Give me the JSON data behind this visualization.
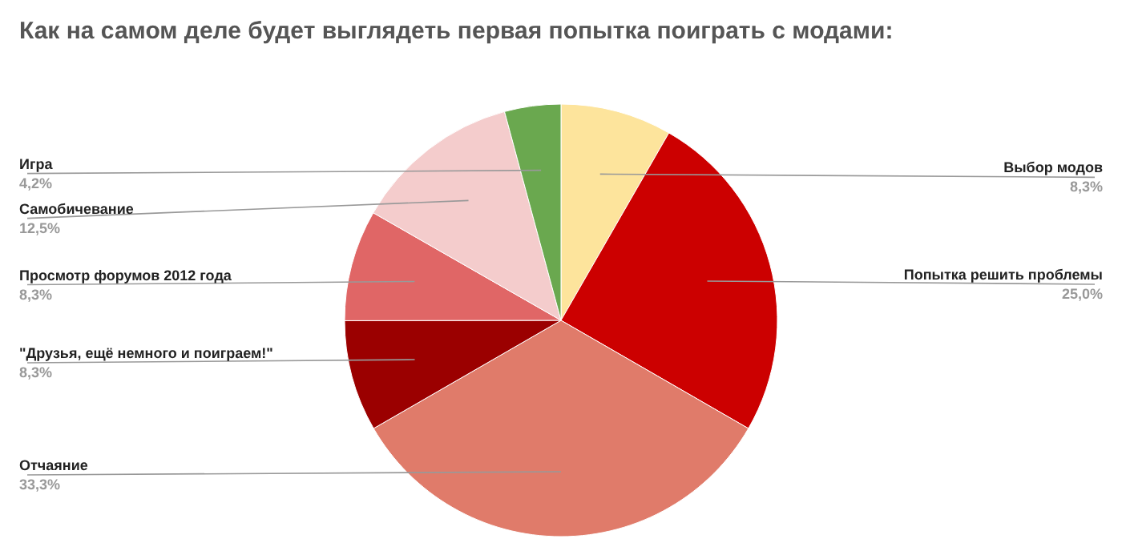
{
  "chart_data": {
    "type": "pie",
    "title": "Как на самом деле будет выглядеть первая попытка поиграть с модами:",
    "categories": [
      "Выбор модов",
      "Попытка решить проблемы",
      "Отчаяние",
      "\"Друзья, ещё немного и поиграем!\"",
      "Просмотр форумов 2012 года",
      "Самобичевание",
      "Игра"
    ],
    "values": [
      8.3,
      25.0,
      33.3,
      8.3,
      8.3,
      12.5,
      4.2
    ],
    "value_labels": [
      "8,3%",
      "25,0%",
      "33,3%",
      "8,3%",
      "8,3%",
      "12,5%",
      "4,2%"
    ],
    "colors": [
      "#fde49c",
      "#cc0000",
      "#e07b6a",
      "#9b0000",
      "#e06666",
      "#f4cccc",
      "#6aa84f"
    ]
  }
}
